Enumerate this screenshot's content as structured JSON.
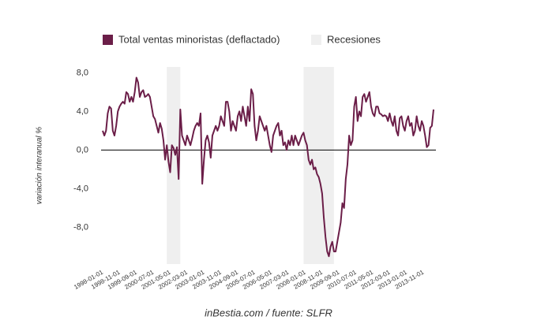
{
  "chart_data": {
    "type": "line",
    "legend": [
      "Total ventas minoristas (deflactado)",
      "Recesiones"
    ],
    "ylabel": "variación interanual %",
    "source": "inBestia.com / fuente: SLFR",
    "categories": [
      "1998-01-01",
      null,
      null,
      null,
      null,
      null,
      null,
      null,
      null,
      null,
      "1998-11-01",
      null,
      null,
      null,
      null,
      null,
      null,
      null,
      null,
      null,
      "1999-09-01",
      null,
      null,
      null,
      null,
      null,
      null,
      null,
      null,
      null,
      "2000-07-01",
      null,
      null,
      null,
      null,
      null,
      null,
      null,
      null,
      null,
      "2001-05-01",
      null,
      null,
      null,
      null,
      null,
      null,
      null,
      null,
      null,
      "2002-03-01",
      null,
      null,
      null,
      null,
      null,
      null,
      null,
      null,
      null,
      "2003-01-01",
      null,
      null,
      null,
      null,
      null,
      null,
      null,
      null,
      null,
      "2003-11-01",
      null,
      null,
      null,
      null,
      null,
      null,
      null,
      null,
      null,
      "2004-09-01",
      null,
      null,
      null,
      null,
      null,
      null,
      null,
      null,
      null,
      "2005-07-01",
      null,
      null,
      null,
      null,
      null,
      null,
      null,
      null,
      null,
      "2006-05-01",
      null,
      null,
      null,
      null,
      null,
      null,
      null,
      null,
      null,
      "2007-03-01",
      null,
      null,
      null,
      null,
      null,
      null,
      null,
      null,
      null,
      "2008-01-01",
      null,
      null,
      null,
      null,
      null,
      null,
      null,
      null,
      null,
      "2008-11-01",
      null,
      null,
      null,
      null,
      null,
      null,
      null,
      null,
      null,
      "2009-09-01",
      null,
      null,
      null,
      null,
      null,
      null,
      null,
      null,
      null,
      "2010-07-01",
      null,
      null,
      null,
      null,
      null,
      null,
      null,
      null,
      null,
      "2011-05-01",
      null,
      null,
      null,
      null,
      null,
      null,
      null,
      null,
      null,
      "2012-03-01",
      null,
      null,
      null,
      null,
      null,
      null,
      null,
      null,
      null,
      "2013-01-01",
      null,
      null,
      null,
      null,
      null,
      null,
      null,
      null,
      null,
      "2013-11-01",
      null,
      null,
      null,
      null,
      null,
      null
    ],
    "series": [
      {
        "name": "Total ventas minoristas (deflactado)",
        "color": "#6b1e48",
        "values": [
          2.0,
          1.5,
          2.0,
          3.8,
          4.5,
          4.3,
          2.0,
          1.5,
          2.5,
          4.0,
          4.5,
          4.8,
          5.0,
          4.8,
          6.0,
          5.8,
          5.0,
          5.5,
          5.0,
          6.0,
          7.5,
          7.0,
          5.5,
          6.0,
          6.2,
          5.5,
          5.6,
          5.8,
          5.5,
          4.5,
          3.5,
          3.2,
          2.5,
          1.8,
          2.8,
          2.2,
          1.0,
          -1.0,
          0.5,
          -1.2,
          -2.3,
          0.5,
          0.2,
          -0.5,
          0.3,
          -3.0,
          4.2,
          1.5,
          1.0,
          0.5,
          1.5,
          1.0,
          0.5,
          1.2,
          2.0,
          2.5,
          2.8,
          2.5,
          3.8,
          -3.5,
          -1.0,
          1.0,
          1.5,
          0.8,
          -0.8,
          1.5,
          2.0,
          2.5,
          2.0,
          2.5,
          3.5,
          3.0,
          2.5,
          5.0,
          5.0,
          4.0,
          2.0,
          3.0,
          2.5,
          2.0,
          3.5,
          4.0,
          3.0,
          4.5,
          3.5,
          2.5,
          4.5,
          3.0,
          6.3,
          5.8,
          2.5,
          1.0,
          2.0,
          3.5,
          3.0,
          2.5,
          2.0,
          2.5,
          1.5,
          0.5,
          -0.2,
          1.5,
          2.0,
          2.5,
          2.8,
          1.5,
          2.0,
          0.5,
          0.8,
          0.0,
          1.0,
          0.5,
          1.5,
          0.5,
          1.5,
          1.0,
          0.5,
          1.0,
          1.5,
          1.8,
          1.0,
          0.5,
          -1.0,
          -1.5,
          -1.0,
          -2.0,
          -1.8,
          -2.5,
          -2.8,
          -3.5,
          -4.5,
          -7.0,
          -9.0,
          -10.5,
          -11.0,
          -10.0,
          -9.5,
          -10.5,
          -10.5,
          -9.5,
          -8.5,
          -7.5,
          -5.5,
          -6.0,
          -3.0,
          -1.5,
          1.5,
          0.5,
          1.0,
          4.5,
          5.5,
          3.0,
          4.0,
          3.5,
          5.5,
          5.8,
          5.0,
          5.5,
          6.0,
          4.5,
          3.8,
          3.5,
          4.5,
          4.5,
          3.8,
          3.7,
          3.5,
          3.6,
          3.5,
          3.0,
          3.8,
          3.0,
          2.5,
          3.5,
          2.0,
          1.5,
          3.3,
          3.5,
          2.5,
          2.0,
          3.0,
          3.5,
          2.5,
          2.8,
          1.5,
          2.0,
          3.5,
          2.5,
          2.0,
          3.0,
          2.5,
          1.5,
          0.3,
          0.5,
          2.3,
          2.5,
          4.2
        ]
      }
    ],
    "recessions": {
      "color": "#efefef",
      "periods": [
        [
          "2001-03-01",
          "2001-11-01"
        ],
        [
          "2007-12-01",
          "2009-06-01"
        ]
      ]
    },
    "ylim": [
      -11.8,
      8.6
    ],
    "yticks": [
      {
        "value": 8,
        "label": "8,0"
      },
      {
        "value": 4,
        "label": "4,0"
      },
      {
        "value": 0,
        "label": "0,0"
      },
      {
        "value": -4,
        "label": "-4,0"
      },
      {
        "value": -8,
        "label": "-8,0"
      }
    ],
    "zero_line": true
  }
}
